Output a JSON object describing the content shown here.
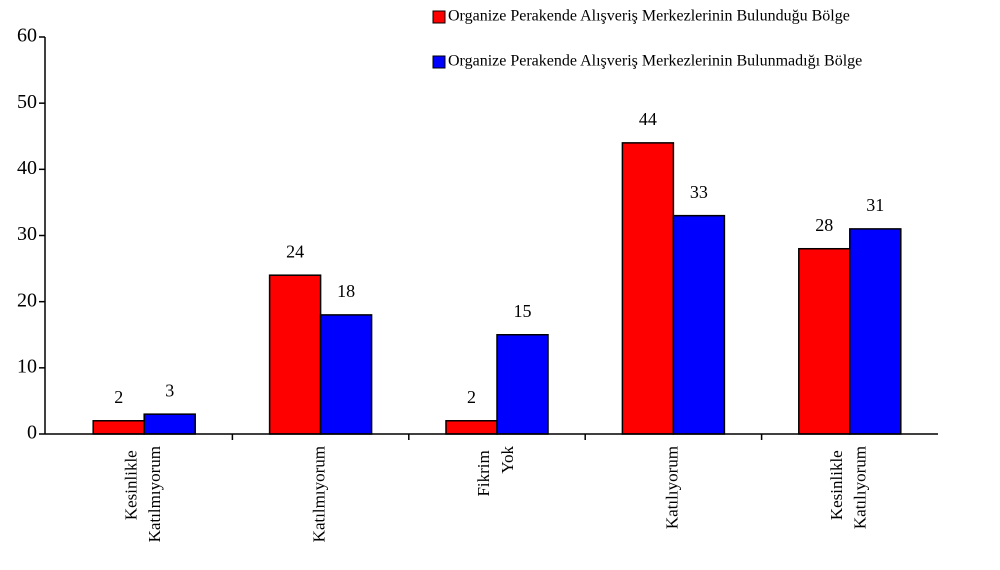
{
  "chart_data": {
    "type": "bar",
    "categories": [
      "Kesinlikle Katılmıyorum",
      "Katılmıyorum",
      "Fikrim Yok",
      "Katılıyorum",
      "Kesinlikle Katılıyorum"
    ],
    "series": [
      {
        "name": "Organize Perakende Alışveriş Merkezlerinin Bulunduğu Bölge",
        "color": "#ff0000",
        "values": [
          2,
          24,
          2,
          44,
          28
        ]
      },
      {
        "name": "Organize Perakende Alışveriş Merkezlerinin Bulunmadığı Bölge",
        "color": "#0000ff",
        "values": [
          3,
          18,
          15,
          33,
          31
        ]
      }
    ],
    "ylim": [
      0,
      60
    ],
    "yticks": [
      0,
      10,
      20,
      30,
      40,
      50,
      60
    ],
    "grid": false,
    "legend": "top-right",
    "data_labels": true
  }
}
